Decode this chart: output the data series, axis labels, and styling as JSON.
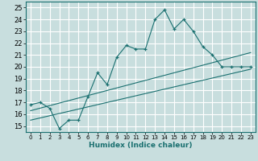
{
  "title": "",
  "xlabel": "Humidex (Indice chaleur)",
  "bg_color": "#c8dede",
  "grid_color": "#ffffff",
  "line_color": "#1a7070",
  "xlim": [
    -0.5,
    23.5
  ],
  "ylim": [
    14.5,
    25.5
  ],
  "xticks": [
    0,
    1,
    2,
    3,
    4,
    5,
    6,
    7,
    8,
    9,
    10,
    11,
    12,
    13,
    14,
    15,
    16,
    17,
    18,
    19,
    20,
    21,
    22,
    23
  ],
  "yticks": [
    15,
    16,
    17,
    18,
    19,
    20,
    21,
    22,
    23,
    24,
    25
  ],
  "line1_x": [
    0,
    1,
    2,
    3,
    4,
    5,
    6,
    7,
    8,
    9,
    10,
    11,
    12,
    13,
    14,
    15,
    16,
    17,
    18,
    19,
    20,
    21,
    22,
    23
  ],
  "line1_y": [
    16.8,
    17.0,
    16.5,
    14.8,
    15.5,
    15.5,
    17.5,
    19.5,
    18.5,
    20.8,
    21.8,
    21.5,
    21.5,
    24.0,
    24.8,
    23.2,
    24.0,
    23.0,
    21.7,
    21.0,
    20.0,
    20.0,
    20.0,
    20.0
  ],
  "line2_x": [
    0,
    23
  ],
  "line2_y": [
    16.3,
    21.2
  ],
  "line3_x": [
    0,
    23
  ],
  "line3_y": [
    15.5,
    19.8
  ]
}
